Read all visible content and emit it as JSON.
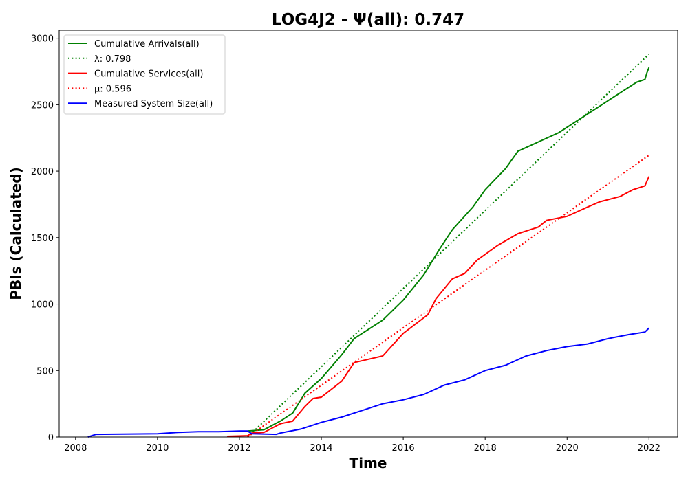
{
  "chart_data": {
    "type": "line",
    "title": "LOG4J2 -  Ψ(all): 0.747",
    "xlabel": "Time",
    "ylabel": "PBIs (Calculated)",
    "xlim": [
      2007.6,
      2022.7
    ],
    "ylim": [
      0,
      3060
    ],
    "xticks": [
      2008,
      2010,
      2012,
      2014,
      2016,
      2018,
      2020,
      2022
    ],
    "yticks": [
      0,
      500,
      1000,
      1500,
      2000,
      2500,
      3000
    ],
    "grid": false,
    "legend_position": "top-left",
    "series": [
      {
        "name": "Cumulative Arrivals(all)",
        "style": "solid",
        "color": "#008000",
        "points": [
          [
            2012.2,
            45
          ],
          [
            2012.6,
            55
          ],
          [
            2013.0,
            120
          ],
          [
            2013.3,
            180
          ],
          [
            2013.6,
            330
          ],
          [
            2014.0,
            440
          ],
          [
            2014.5,
            620
          ],
          [
            2014.8,
            740
          ],
          [
            2015.5,
            880
          ],
          [
            2016.0,
            1030
          ],
          [
            2016.5,
            1220
          ],
          [
            2016.9,
            1420
          ],
          [
            2017.2,
            1560
          ],
          [
            2017.7,
            1730
          ],
          [
            2018.0,
            1860
          ],
          [
            2018.5,
            2020
          ],
          [
            2018.8,
            2150
          ],
          [
            2019.3,
            2220
          ],
          [
            2019.8,
            2290
          ],
          [
            2020.3,
            2390
          ],
          [
            2020.8,
            2490
          ],
          [
            2021.3,
            2590
          ],
          [
            2021.7,
            2670
          ],
          [
            2021.9,
            2690
          ],
          [
            2021.95,
            2740
          ],
          [
            2022.0,
            2780
          ]
        ]
      },
      {
        "name": "λ: 0.798",
        "style": "dotted",
        "color": "#008000",
        "points": [
          [
            2012.2,
            0
          ],
          [
            2022.0,
            2880
          ]
        ]
      },
      {
        "name": "Cumulative Services(all)",
        "style": "solid",
        "color": "#ff0000",
        "points": [
          [
            2011.7,
            5
          ],
          [
            2012.2,
            10
          ],
          [
            2012.3,
            30
          ],
          [
            2012.6,
            35
          ],
          [
            2013.0,
            100
          ],
          [
            2013.3,
            120
          ],
          [
            2013.6,
            230
          ],
          [
            2013.8,
            290
          ],
          [
            2014.0,
            300
          ],
          [
            2014.5,
            420
          ],
          [
            2014.8,
            560
          ],
          [
            2015.5,
            610
          ],
          [
            2016.0,
            780
          ],
          [
            2016.6,
            920
          ],
          [
            2016.8,
            1040
          ],
          [
            2017.2,
            1190
          ],
          [
            2017.5,
            1230
          ],
          [
            2017.8,
            1330
          ],
          [
            2018.3,
            1440
          ],
          [
            2018.8,
            1530
          ],
          [
            2019.3,
            1580
          ],
          [
            2019.5,
            1630
          ],
          [
            2020.0,
            1660
          ],
          [
            2020.5,
            1730
          ],
          [
            2020.8,
            1770
          ],
          [
            2021.3,
            1810
          ],
          [
            2021.6,
            1860
          ],
          [
            2021.9,
            1890
          ],
          [
            2022.0,
            1960
          ]
        ]
      },
      {
        "name": "μ: 0.596",
        "style": "dotted",
        "color": "#ff0000",
        "points": [
          [
            2012.2,
            0
          ],
          [
            2022.0,
            2120
          ]
        ]
      },
      {
        "name": "Measured System Size(all)",
        "style": "solid",
        "color": "#0000ff",
        "points": [
          [
            2008.3,
            0
          ],
          [
            2008.5,
            20
          ],
          [
            2010.0,
            25
          ],
          [
            2010.5,
            35
          ],
          [
            2011.0,
            40
          ],
          [
            2011.5,
            40
          ],
          [
            2012.0,
            45
          ],
          [
            2012.2,
            45
          ],
          [
            2012.3,
            25
          ],
          [
            2012.9,
            20
          ],
          [
            2013.0,
            30
          ],
          [
            2013.5,
            60
          ],
          [
            2014.0,
            110
          ],
          [
            2014.5,
            150
          ],
          [
            2015.0,
            200
          ],
          [
            2015.5,
            250
          ],
          [
            2016.0,
            280
          ],
          [
            2016.5,
            320
          ],
          [
            2017.0,
            390
          ],
          [
            2017.5,
            430
          ],
          [
            2018.0,
            500
          ],
          [
            2018.5,
            540
          ],
          [
            2019.0,
            610
          ],
          [
            2019.5,
            650
          ],
          [
            2020.0,
            680
          ],
          [
            2020.5,
            700
          ],
          [
            2021.0,
            740
          ],
          [
            2021.5,
            770
          ],
          [
            2021.9,
            790
          ],
          [
            2022.0,
            820
          ]
        ]
      }
    ]
  }
}
